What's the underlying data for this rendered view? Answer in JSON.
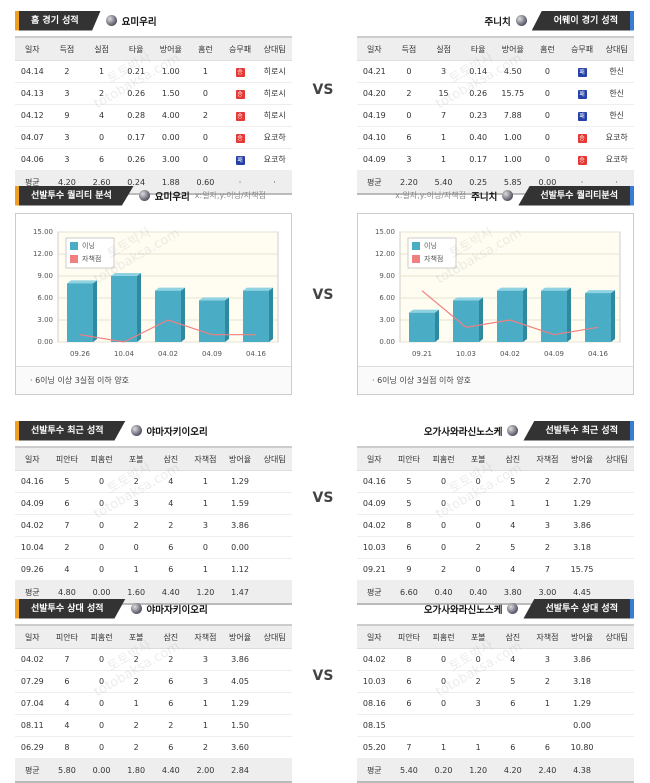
{
  "vs": "VS",
  "watermark": [
    "토토박사",
    "totobaksa.com"
  ],
  "tables": [
    {
      "title": "홈 경기 성적",
      "team": "요미우리",
      "columns": [
        "일자",
        "득점",
        "실점",
        "타율",
        "방어율",
        "홈런",
        "승무패",
        "상대팀"
      ],
      "rows": [
        [
          "04.14",
          "2",
          "1",
          "0.21",
          "1.00",
          "1",
          "승",
          "히로시"
        ],
        [
          "04.13",
          "3",
          "2",
          "0.26",
          "1.50",
          "0",
          "승",
          "히로시"
        ],
        [
          "04.12",
          "9",
          "4",
          "0.28",
          "4.00",
          "2",
          "승",
          "히로시"
        ],
        [
          "04.07",
          "3",
          "0",
          "0.17",
          "0.00",
          "0",
          "승",
          "요코하"
        ],
        [
          "04.06",
          "3",
          "6",
          "0.26",
          "3.00",
          "0",
          "패",
          "요코하"
        ],
        [
          "평균",
          "4.20",
          "2.60",
          "0.24",
          "1.88",
          "0.60",
          "·",
          "·"
        ]
      ]
    },
    {
      "title": "어웨이 경기 성적",
      "team": "주니치",
      "columns": [
        "일자",
        "득점",
        "실점",
        "타율",
        "방어율",
        "홈런",
        "승무패",
        "상대팀"
      ],
      "rows": [
        [
          "04.21",
          "0",
          "3",
          "0.14",
          "4.50",
          "0",
          "패",
          "한신"
        ],
        [
          "04.20",
          "2",
          "15",
          "0.26",
          "15.75",
          "0",
          "패",
          "한신"
        ],
        [
          "04.19",
          "0",
          "7",
          "0.23",
          "7.88",
          "0",
          "패",
          "한신"
        ],
        [
          "04.10",
          "6",
          "1",
          "0.40",
          "1.00",
          "0",
          "승",
          "요코하"
        ],
        [
          "04.09",
          "3",
          "1",
          "0.17",
          "1.00",
          "0",
          "승",
          "요코하"
        ],
        [
          "평균",
          "2.20",
          "5.40",
          "0.25",
          "5.85",
          "0.00",
          "·",
          "·"
        ]
      ]
    },
    {
      "title": "선발투수 최근 성적",
      "team": "야마자키이오리",
      "columns": [
        "일자",
        "피안타",
        "피홈런",
        "포볼",
        "삼진",
        "자책점",
        "방어율",
        "상대팀"
      ],
      "rows": [
        [
          "04.16",
          "5",
          "0",
          "2",
          "4",
          "1",
          "1.29"
        ],
        [
          "04.09",
          "6",
          "0",
          "3",
          "4",
          "1",
          "1.59"
        ],
        [
          "04.02",
          "7",
          "0",
          "2",
          "2",
          "3",
          "3.86"
        ],
        [
          "10.04",
          "2",
          "0",
          "0",
          "6",
          "0",
          "0.00"
        ],
        [
          "09.26",
          "4",
          "0",
          "1",
          "6",
          "1",
          "1.12"
        ],
        [
          "평균",
          "4.80",
          "0.00",
          "1.60",
          "4.40",
          "1.20",
          "1.47"
        ]
      ]
    },
    {
      "title": "선발투수 최근 성적",
      "team": "오가사와라신노스케",
      "columns": [
        "일자",
        "피안타",
        "피홈런",
        "포볼",
        "삼진",
        "자책점",
        "방어율",
        "상대팀"
      ],
      "rows": [
        [
          "04.16",
          "5",
          "0",
          "0",
          "5",
          "2",
          "2.70"
        ],
        [
          "04.09",
          "5",
          "0",
          "0",
          "1",
          "1",
          "1.29"
        ],
        [
          "04.02",
          "8",
          "0",
          "0",
          "4",
          "3",
          "3.86"
        ],
        [
          "10.03",
          "6",
          "0",
          "2",
          "5",
          "2",
          "3.18"
        ],
        [
          "09.21",
          "9",
          "2",
          "0",
          "4",
          "7",
          "15.75"
        ],
        [
          "평균",
          "6.60",
          "0.40",
          "0.40",
          "3.80",
          "3.00",
          "4.45"
        ]
      ]
    },
    {
      "title": "선발투수 상대 성적",
      "team": "야마자키이오리",
      "columns": [
        "일자",
        "피안타",
        "피홈런",
        "포볼",
        "삼진",
        "자책점",
        "방어율",
        "상대팀"
      ],
      "rows": [
        [
          "04.02",
          "7",
          "0",
          "2",
          "2",
          "3",
          "3.86"
        ],
        [
          "07.29",
          "6",
          "0",
          "2",
          "6",
          "3",
          "4.05"
        ],
        [
          "07.04",
          "4",
          "0",
          "1",
          "6",
          "1",
          "1.29"
        ],
        [
          "08.11",
          "4",
          "0",
          "2",
          "2",
          "1",
          "1.50"
        ],
        [
          "06.29",
          "8",
          "0",
          "2",
          "6",
          "2",
          "3.60"
        ],
        [
          "평균",
          "5.80",
          "0.00",
          "1.80",
          "4.40",
          "2.00",
          "2.84"
        ]
      ]
    },
    {
      "title": "선발투수 상대 성적",
      "team": "오가사와라신노스케",
      "columns": [
        "일자",
        "피안타",
        "피홈런",
        "포볼",
        "삼진",
        "자책점",
        "방어율",
        "상대팀"
      ],
      "rows": [
        [
          "04.02",
          "8",
          "0",
          "0",
          "4",
          "3",
          "3.86"
        ],
        [
          "10.03",
          "6",
          "0",
          "2",
          "5",
          "2",
          "3.18"
        ],
        [
          "08.16",
          "6",
          "0",
          "3",
          "6",
          "1",
          "1.29"
        ],
        [
          "08.15",
          null,
          null,
          null,
          null,
          null,
          "0.00"
        ],
        [
          "05.20",
          "7",
          "1",
          "1",
          "6",
          "6",
          "10.80"
        ],
        [
          "평균",
          "5.40",
          "0.20",
          "1.20",
          "4.20",
          "2.40",
          "4.38"
        ]
      ]
    }
  ],
  "chart_data": [
    {
      "type": "bar",
      "title": "선발투수 퀄리티 분석",
      "team": "요미우리",
      "subtitle": "x:일자,y:이닝/자책점",
      "note": "· 6이닝 이상 3실점 이하 양호",
      "categories": [
        "09.26",
        "10.04",
        "04.02",
        "04.09",
        "04.16"
      ],
      "series": [
        {
          "name": "이닝",
          "color": "#4bacc6",
          "type": "bar",
          "values": [
            8,
            9,
            7,
            5.67,
            7
          ]
        },
        {
          "name": "자책점",
          "color": "#f08080",
          "type": "line",
          "values": [
            1,
            0,
            3,
            1,
            1
          ]
        }
      ],
      "ylim": [
        0,
        15
      ],
      "yticks": [
        {
          "value": 0,
          "label": "0.00"
        },
        {
          "value": 3,
          "label": "3.00"
        },
        {
          "value": 6,
          "label": "6.00"
        },
        {
          "value": 9,
          "label": "9.00"
        },
        {
          "value": 12,
          "label": "12.00"
        },
        {
          "value": 15,
          "label": "15.00"
        }
      ],
      "grid": true
    },
    {
      "type": "bar",
      "title": "선발투수 퀄리티분석",
      "team": "주니치",
      "subtitle": "x:일자,y:이닝/자책점",
      "note": "· 6이닝 이상 3실점 이하 양호",
      "categories": [
        "09.21",
        "10.03",
        "04.02",
        "04.09",
        "04.16"
      ],
      "series": [
        {
          "name": "이닝",
          "color": "#4bacc6",
          "type": "bar",
          "values": [
            4,
            5.67,
            7,
            7,
            6.67
          ]
        },
        {
          "name": "자책점",
          "color": "#f08080",
          "type": "line",
          "values": [
            7,
            2,
            3,
            1,
            2
          ]
        }
      ],
      "ylim": [
        0,
        15
      ],
      "yticks": [
        {
          "value": 0,
          "label": "0.00"
        },
        {
          "value": 3,
          "label": "3.00"
        },
        {
          "value": 6,
          "label": "6.00"
        },
        {
          "value": 9,
          "label": "9.00"
        },
        {
          "value": 12,
          "label": "12.00"
        },
        {
          "value": 15,
          "label": "15.00"
        }
      ],
      "grid": true
    }
  ]
}
